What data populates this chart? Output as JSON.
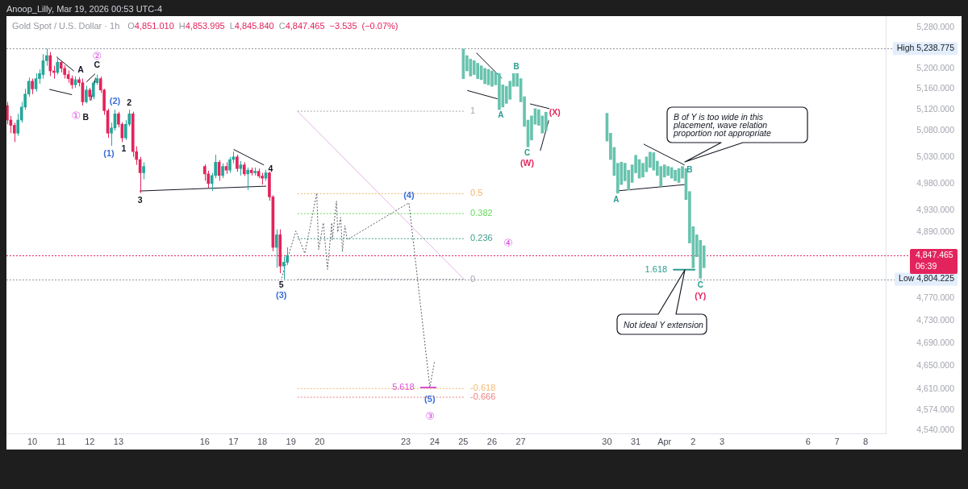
{
  "chart_data": {
    "type": "candlestick",
    "title": "Gold Spot / U.S. Dollar · 1h",
    "subtitle": "O4,851.010 H4,853.995 L4,845.840 C4,847.465 −3.535 (−0.07%)",
    "log": "y",
    "xlim": [
      "2026-03-09T02:24",
      "2026-04-08T16:48"
    ],
    "ylim": [
      4534,
      5303
    ],
    "xticks": [
      {
        "value": "2026-03-10",
        "label": "10"
      },
      {
        "value": "2026-03-11",
        "label": "11"
      },
      {
        "value": "2026-03-12",
        "label": "12"
      },
      {
        "value": "2026-03-13",
        "label": "13"
      },
      {
        "value": "2026-03-16",
        "label": "16"
      },
      {
        "value": "2026-03-17",
        "label": "17"
      },
      {
        "value": "2026-03-18",
        "label": "18"
      },
      {
        "value": "2026-03-19",
        "label": "19"
      },
      {
        "value": "2026-03-20",
        "label": "20"
      },
      {
        "value": "2026-03-23",
        "label": "23"
      },
      {
        "value": "2026-03-24",
        "label": "24"
      },
      {
        "value": "2026-03-25",
        "label": "25"
      },
      {
        "value": "2026-03-26",
        "label": "26"
      },
      {
        "value": "2026-03-27",
        "label": "27"
      },
      {
        "value": "2026-03-30",
        "label": "30"
      },
      {
        "value": "2026-03-31",
        "label": "31"
      },
      {
        "value": "2026-04-01",
        "label": "Apr"
      },
      {
        "value": "2026-04-02",
        "label": "2"
      },
      {
        "value": "2026-04-03",
        "label": "3"
      },
      {
        "value": "2026-04-06",
        "label": "6"
      },
      {
        "value": "2026-04-07",
        "label": "7"
      },
      {
        "value": "2026-04-08",
        "label": "8"
      }
    ],
    "yticks": [
      {
        "value": 5280,
        "label": "5,280.000"
      },
      {
        "value": 5200,
        "label": "5,200.000"
      },
      {
        "value": 5160,
        "label": "5,160.000"
      },
      {
        "value": 5120,
        "label": "5,120.000"
      },
      {
        "value": 5080,
        "label": "5,080.000"
      },
      {
        "value": 5030,
        "label": "5,030.000"
      },
      {
        "value": 4980,
        "label": "4,980.000"
      },
      {
        "value": 4930,
        "label": "4,930.000"
      },
      {
        "value": 4890,
        "label": "4,890.000"
      },
      {
        "value": 4770,
        "label": "4,770.000"
      },
      {
        "value": 4730,
        "label": "4,730.000"
      },
      {
        "value": 4690,
        "label": "4,690.000"
      },
      {
        "value": 4650,
        "label": "4,650.000"
      },
      {
        "value": 4610,
        "label": "4,610.000"
      },
      {
        "value": 4574,
        "label": "4,574.000"
      },
      {
        "value": 4540,
        "label": "4,540.000"
      }
    ],
    "series": [
      {
        "x": [
          "2026-03-09T03:00",
          "2026-03-09T06:00",
          "2026-03-09T09:00",
          "2026-03-09T12:00",
          "2026-03-09T15:00",
          "2026-03-09T18:00",
          "2026-03-09T21:00",
          "2026-03-10T00:00",
          "2026-03-10T03:00",
          "2026-03-10T06:00",
          "2026-03-10T09:00",
          "2026-03-10T12:00",
          "2026-03-10T15:00",
          "2026-03-10T18:00",
          "2026-03-10T21:00",
          "2026-03-11T00:00",
          "2026-03-11T03:00",
          "2026-03-11T06:00",
          "2026-03-11T09:00",
          "2026-03-11T12:00",
          "2026-03-11T15:00",
          "2026-03-11T18:00",
          "2026-03-11T21:00",
          "2026-03-12T00:00",
          "2026-03-12T03:00",
          "2026-03-12T06:00",
          "2026-03-12T09:00",
          "2026-03-12T12:00",
          "2026-03-12T15:00",
          "2026-03-12T18:00",
          "2026-03-12T21:00",
          "2026-03-13T00:00",
          "2026-03-13T03:00",
          "2026-03-13T06:00",
          "2026-03-13T09:00",
          "2026-03-13T12:00",
          "2026-03-13T15:00",
          "2026-03-13T18:00",
          "2026-03-13T21:00",
          "2026-03-16T00:00",
          "2026-03-16T03:00",
          "2026-03-16T06:00",
          "2026-03-16T09:00",
          "2026-03-16T12:00",
          "2026-03-16T15:00",
          "2026-03-16T18:00",
          "2026-03-16T21:00",
          "2026-03-17T00:00",
          "2026-03-17T03:00",
          "2026-03-17T06:00",
          "2026-03-17T09:00",
          "2026-03-17T12:00",
          "2026-03-17T15:00",
          "2026-03-17T18:00",
          "2026-03-17T21:00",
          "2026-03-18T00:00",
          "2026-03-18T03:00",
          "2026-03-18T06:00",
          "2026-03-18T09:00",
          "2026-03-18T12:00",
          "2026-03-18T15:00",
          "2026-03-18T18:00",
          "2026-03-18T21:00"
        ],
        "ohlc": [
          [
            5128,
            5135,
            5092,
            5100
          ],
          [
            5100,
            5108,
            5075,
            5090
          ],
          [
            5090,
            5095,
            5058,
            5075
          ],
          [
            5075,
            5112,
            5070,
            5100
          ],
          [
            5100,
            5135,
            5095,
            5125
          ],
          [
            5125,
            5160,
            5120,
            5150
          ],
          [
            5150,
            5182,
            5145,
            5175
          ],
          [
            5175,
            5180,
            5150,
            5160
          ],
          [
            5160,
            5190,
            5155,
            5180
          ],
          [
            5180,
            5198,
            5170,
            5190
          ],
          [
            5188,
            5228,
            5180,
            5215
          ],
          [
            5215,
            5238.775,
            5205,
            5225
          ],
          [
            5225,
            5232,
            5185,
            5195
          ],
          [
            5195,
            5205,
            5180,
            5192
          ],
          [
            5192,
            5220,
            5188,
            5212
          ],
          [
            5212,
            5215,
            5192,
            5200
          ],
          [
            5200,
            5206,
            5180,
            5188
          ],
          [
            5188,
            5196,
            5172,
            5180
          ],
          [
            5180,
            5186,
            5160,
            5168
          ],
          [
            5168,
            5184,
            5162,
            5178
          ],
          [
            5178,
            5183,
            5165,
            5172
          ],
          [
            5172,
            5180,
            5128,
            5135
          ],
          [
            5135,
            5166,
            5132,
            5158
          ],
          [
            5158,
            5162,
            5138,
            5145
          ],
          [
            5145,
            5176,
            5140,
            5172
          ],
          [
            5172,
            5188,
            5168,
            5180
          ],
          [
            5180,
            5184,
            5152,
            5158
          ],
          [
            5158,
            5160,
            5110,
            5118
          ],
          [
            5118,
            5122,
            5066,
            5075
          ],
          [
            5075,
            5095,
            5051,
            5085
          ],
          [
            5085,
            5120,
            5080,
            5112
          ],
          [
            5112,
            5116,
            5086,
            5092
          ],
          [
            5092,
            5096,
            5058,
            5066
          ],
          [
            5066,
            5100,
            5062,
            5092
          ],
          [
            5092,
            5120,
            5088,
            5112
          ],
          [
            5112,
            5116,
            5030,
            5040
          ],
          [
            5040,
            5050,
            5015,
            5025
          ],
          [
            5025,
            5030,
            4962,
            5000
          ],
          [
            5000,
            5020,
            4988,
            5012
          ],
          [
            5012,
            5016,
            4985,
            4998
          ],
          [
            4998,
            5004,
            4972,
            4980
          ],
          [
            4980,
            5000,
            4966,
            4995
          ],
          [
            4995,
            5034,
            4990,
            5020
          ],
          [
            5020,
            5024,
            4985,
            4995
          ],
          [
            4995,
            5018,
            4990,
            5012
          ],
          [
            5012,
            5020,
            4998,
            5005
          ],
          [
            5005,
            5030,
            5000,
            5025
          ],
          [
            5025,
            5040,
            5018,
            5030
          ],
          [
            5030,
            5034,
            5002,
            5008
          ],
          [
            5008,
            5022,
            4995,
            5015
          ],
          [
            5015,
            5020,
            4994,
            4998
          ],
          [
            4998,
            5010,
            4968,
            5005
          ],
          [
            5005,
            5010,
            4995,
            5000
          ],
          [
            5000,
            5010,
            4995,
            5003
          ],
          [
            5003,
            5008,
            4990,
            4994
          ],
          [
            4994,
            5000,
            4978,
            4990
          ],
          [
            4990,
            5006,
            4985,
            5000
          ],
          [
            5000,
            5002,
            4948,
            4955
          ],
          [
            4955,
            4958,
            4855,
            4862
          ],
          [
            4862,
            4895,
            4825,
            4885
          ],
          [
            4885,
            4895,
            4815,
            4828
          ],
          [
            4828,
            4845,
            4804.225,
            4835
          ],
          [
            4835,
            4862,
            4830,
            4847.465
          ]
        ],
        "colors": [
          "#e3245c",
          "#e3245c",
          "#e3245c",
          "#26a69a",
          "#26a69a",
          "#26a69a",
          "#26a69a",
          "#e3245c",
          "#26a69a",
          "#26a69a",
          "#26a69a",
          "#26a69a",
          "#e3245c",
          "#e3245c",
          "#26a69a",
          "#e3245c",
          "#e3245c",
          "#e3245c",
          "#e3245c",
          "#26a69a",
          "#e3245c",
          "#e3245c",
          "#26a69a",
          "#e3245c",
          "#26a69a",
          "#26a69a",
          "#e3245c",
          "#e3245c",
          "#e3245c",
          "#26a69a",
          "#26a69a",
          "#e3245c",
          "#e3245c",
          "#26a69a",
          "#26a69a",
          "#e3245c",
          "#e3245c",
          "#e3245c",
          "#26a69a",
          "#e3245c",
          "#e3245c",
          "#26a69a",
          "#26a69a",
          "#e3245c",
          "#26a69a",
          "#e3245c",
          "#26a69a",
          "#26a69a",
          "#e3245c",
          "#26a69a",
          "#e3245c",
          "#26a69a",
          "#e3245c",
          "#26a69a",
          "#e3245c",
          "#e3245c",
          "#26a69a",
          "#e3245c",
          "#e3245c",
          "#26a69a",
          "#e3245c",
          "#26a69a",
          "#26a69a"
        ]
      },
      {
        "type": "bar",
        "color": "#68c3ae",
        "x": [
          "2026-03-25T00:00",
          "2026-03-25T03:00",
          "2026-03-25T06:00",
          "2026-03-25T09:00",
          "2026-03-25T12:00",
          "2026-03-25T15:00",
          "2026-03-25T18:00",
          "2026-03-25T21:00",
          "2026-03-26T00:00",
          "2026-03-26T03:00",
          "2026-03-26T06:00",
          "2026-03-26T09:00",
          "2026-03-26T12:00",
          "2026-03-26T15:00",
          "2026-03-26T18:00",
          "2026-03-26T21:00",
          "2026-03-27T00:00",
          "2026-03-27T03:00",
          "2026-03-27T06:00",
          "2026-03-27T09:00",
          "2026-03-27T12:00",
          "2026-03-27T15:00",
          "2026-03-27T18:00",
          "2026-03-27T21:00",
          "2026-03-30T00:00",
          "2026-03-30T03:00",
          "2026-03-30T06:00",
          "2026-03-30T09:00",
          "2026-03-30T12:00",
          "2026-03-30T15:00",
          "2026-03-30T18:00",
          "2026-03-30T21:00",
          "2026-03-31T00:00",
          "2026-03-31T03:00",
          "2026-03-31T06:00",
          "2026-03-31T09:00",
          "2026-03-31T12:00",
          "2026-03-31T15:00",
          "2026-03-31T18:00",
          "2026-03-31T21:00",
          "2026-04-01T00:00",
          "2026-04-01T03:00",
          "2026-04-01T06:00",
          "2026-04-01T09:00",
          "2026-04-01T12:00",
          "2026-04-01T15:00",
          "2026-04-01T18:00",
          "2026-04-01T21:00",
          "2026-04-02T00:00",
          "2026-04-02T03:00",
          "2026-04-02T06:00",
          "2026-04-02T09:00"
        ],
        "base": [
          5180,
          5195,
          5185,
          5188,
          5180,
          5178,
          5170,
          5168,
          5165,
          5168,
          5120,
          5125,
          5132,
          5140,
          5165,
          5165,
          5135,
          5088,
          5049,
          5062,
          5092,
          5090,
          5075,
          5080,
          5060,
          5025,
          4995,
          4962,
          4978,
          4985,
          4968,
          4982,
          5000,
          4990,
          4992,
          5002,
          5010,
          5005,
          4995,
          4975,
          4992,
          4995,
          4990,
          4985,
          4982,
          4990,
          4950,
          4870,
          4825,
          4845,
          4806,
          4825
        ],
        "values": [
          58,
          30,
          33,
          27,
          30,
          27,
          30,
          30,
          30,
          24,
          70,
          43,
          33,
          35,
          25,
          25,
          45,
          57,
          51,
          46,
          30,
          30,
          33,
          35,
          53,
          50,
          53,
          56,
          42,
          33,
          37,
          33,
          33,
          35,
          26,
          28,
          29,
          33,
          27,
          37,
          23,
          17,
          20,
          20,
          26,
          22,
          58,
          95,
          75,
          40,
          69,
          40
        ]
      },
      {
        "type": "line",
        "color": "#5d606b",
        "line_style": "dotted",
        "x": [
          "2026-03-18T16:11",
          "2026-03-19T04:09",
          "2026-03-19T11:37",
          "2026-03-19T21:36",
          "2026-03-19T23:07",
          "2026-03-20T03:06",
          "2026-03-20T06:35",
          "2026-03-20T10:05",
          "2026-03-20T10:35",
          "2026-03-20T14:04",
          "2026-03-20T15:04",
          "2026-03-20T17:34",
          "2026-03-20T19:03",
          "2026-03-20T21:03",
          "2026-03-20T23:02",
          "2026-03-23T02:33",
          "2026-03-23T20:01",
          "2026-03-24T00:00"
        ],
        "values": [
          4806,
          4892,
          4851,
          4962,
          4858,
          4907,
          4822,
          4907,
          4876,
          4947,
          4890,
          4917,
          4854,
          4902,
          4876,
          4944,
          4613,
          4659
        ]
      },
      {
        "type": "line",
        "name": "1",
        "color": "#a3a6af",
        "line_style": "dotted",
        "x": [
          "2026-03-19T05:31",
          "2026-03-25T00:29"
        ],
        "values": [
          5117,
          5117
        ]
      },
      {
        "type": "line",
        "name": "0.5",
        "color": "#f0b46a",
        "line_style": "dotted",
        "x": [
          "2026-03-19T05:31",
          "2026-03-25T00:29"
        ],
        "values": [
          4961,
          4961
        ]
      },
      {
        "type": "line",
        "name": "0.382",
        "color": "#66d95b",
        "line_style": "dotted",
        "x": [
          "2026-03-19T05:31",
          "2026-03-25T00:29"
        ],
        "values": [
          4924,
          4924
        ]
      },
      {
        "type": "line",
        "name": "0.236",
        "color": "#3a9f8c",
        "line_style": "dotted",
        "x": [
          "2026-03-19T05:31",
          "2026-03-25T00:29"
        ],
        "values": [
          4878,
          4878
        ]
      },
      {
        "type": "line",
        "name": "0",
        "color": "#a3a6af",
        "line_style": "dotted",
        "x": [
          "2026-03-19T05:31",
          "2026-03-25T00:29"
        ],
        "values": [
          4804.225,
          4804.225
        ]
      },
      {
        "type": "line",
        "name": "-0.618",
        "color": "#f5b870",
        "line_style": "dotted",
        "x": [
          "2026-03-19T05:31",
          "2026-03-25T00:29"
        ],
        "values": [
          4611,
          4611
        ]
      },
      {
        "type": "line",
        "name": "-0.666",
        "color": "#ef7f7f",
        "line_style": "dotted",
        "x": [
          "2026-03-19T05:31",
          "2026-03-25T00:29"
        ],
        "values": [
          4596,
          4596
        ]
      },
      {
        "type": "line",
        "color": "#e5b3e8",
        "x": [
          "2026-03-19T05:31",
          "2026-03-25T00:29"
        ],
        "values": [
          5117,
          4804.225
        ]
      },
      {
        "type": "line",
        "color": "#131722",
        "x": [
          "2026-03-10T20:24",
          "2026-03-11T10:34"
        ],
        "values": [
          5222,
          5195
        ]
      },
      {
        "type": "line",
        "color": "#131722",
        "x": [
          "2026-03-10T14:24",
          "2026-03-11T08:53"
        ],
        "values": [
          5159,
          5149
        ]
      },
      {
        "type": "line",
        "color": "#131722",
        "x": [
          "2026-03-11T21:22",
          "2026-03-12T04:19"
        ],
        "values": [
          5174,
          5189
        ]
      },
      {
        "type": "line",
        "color": "#131722",
        "x": [
          "2026-03-12T00:58",
          "2026-03-12T04:48"
        ],
        "values": [
          5138,
          5181
        ]
      },
      {
        "type": "line",
        "color": "#131722",
        "x": [
          "2026-03-17T00:14",
          "2026-03-18T01:12"
        ],
        "values": [
          5044,
          5015
        ]
      },
      {
        "type": "line",
        "color": "#131722",
        "x": [
          "2026-03-13T17:46",
          "2026-03-18T03:07"
        ],
        "values": [
          4966,
          4975
        ]
      },
      {
        "type": "line",
        "color": "#131722",
        "x": [
          "2026-03-25T11:02",
          "2026-03-26T07:55"
        ],
        "values": [
          5230,
          5181
        ]
      },
      {
        "type": "line",
        "color": "#131722",
        "x": [
          "2026-03-25T03:22",
          "2026-03-26T04:19"
        ],
        "values": [
          5157,
          5141
        ]
      },
      {
        "type": "line",
        "color": "#131722",
        "x": [
          "2026-03-27T07:55",
          "2026-03-27T23:46"
        ],
        "values": [
          5131,
          5122
        ]
      },
      {
        "type": "line",
        "color": "#131722",
        "x": [
          "2026-03-27T16:19",
          "2026-03-27T23:17"
        ],
        "values": [
          5042,
          5099
        ]
      },
      {
        "type": "line",
        "color": "#131722",
        "x": [
          "2026-03-31T06:43",
          "2026-04-01T16:34"
        ],
        "values": [
          5054,
          5015
        ]
      },
      {
        "type": "line",
        "color": "#131722",
        "x": [
          "2026-03-30T07:41",
          "2026-04-01T17:17"
        ],
        "values": [
          4966,
          4978
        ]
      },
      {
        "type": "line",
        "name": "1.618",
        "color": "#2a9d8f",
        "x": [
          "2026-04-01T07:41",
          "2026-04-02T01:12"
        ],
        "values": [
          4821.5,
          4821.5
        ]
      },
      {
        "type": "line",
        "name": "5.618",
        "color": "#d84fd8",
        "x": [
          "2026-03-23T12:29",
          "2026-03-24T00:58"
        ],
        "values": [
          4613,
          4613
        ]
      }
    ],
    "ref_lines": [
      {
        "axis": "y",
        "value": 5238.775,
        "label": "High 5,238.775",
        "color": "#9598a1",
        "line_style": "dotted"
      },
      {
        "axis": "y",
        "value": 4804.225,
        "label": "Low 4,804.225",
        "color": "#9598a1",
        "line_style": "dotted"
      },
      {
        "axis": "y",
        "value": 4847.465,
        "label": "4,847.465",
        "color": "#e3245c",
        "line_style": "dotted"
      }
    ],
    "annotations": [
      "Anoop_Lilly, Mar 19, 2026 00:53 UTC-4",
      {
        "text": "②",
        "x": "2026-03-12T06:00",
        "y": 5188
      },
      {
        "text": "C",
        "x": "2026-03-12T06:00",
        "y": 5188
      },
      {
        "text": "A",
        "x": "2026-03-11T15:00",
        "y": 5183
      },
      {
        "text": "①",
        "x": "2026-03-11T18:00",
        "y": 5128
      },
      {
        "text": "B",
        "x": "2026-03-11T18:00",
        "y": 5128
      },
      {
        "text": "(2)",
        "x": "2026-03-12T21:00",
        "y": 5120
      },
      {
        "text": "2",
        "x": "2026-03-13T09:00",
        "y": 5120
      },
      {
        "text": "(1)",
        "x": "2026-03-12T18:00",
        "y": 5051
      },
      {
        "text": "1",
        "x": "2026-03-13T03:00",
        "y": 5058
      },
      {
        "text": "3",
        "x": "2026-03-13T18:00",
        "y": 4962
      },
      {
        "text": "4",
        "x": "2026-03-18T03:00",
        "y": 5006
      },
      {
        "text": "5",
        "x": "2026-03-18T18:00",
        "y": 4804.225
      },
      {
        "text": "(3)",
        "x": "2026-03-18T18:00",
        "y": 4804.225
      },
      {
        "text": "(4)",
        "x": "2026-03-23T02:33",
        "y": 4944
      },
      {
        "text": "(5)",
        "x": "2026-03-23T20:01",
        "y": 4613
      },
      "③",
      "④",
      {
        "text": "A",
        "x": "2026-03-26T06:00",
        "y": 5120
      },
      {
        "text": "B",
        "x": "2026-03-26T21:00",
        "y": 5190
      },
      {
        "text": "C",
        "x": "2026-03-27T06:00",
        "y": 5049
      },
      {
        "text": "(W)",
        "x": "2026-03-27T06:00",
        "y": 5049
      },
      {
        "text": "(X)",
        "x": "2026-03-27T21:00",
        "y": 5115
      },
      {
        "text": "A",
        "x": "2026-03-30T09:00",
        "y": 4962
      },
      {
        "text": "B",
        "x": "2026-04-01T15:00",
        "y": 5012
      },
      {
        "text": "C",
        "x": "2026-04-02T06:00",
        "y": 4806
      },
      {
        "text": "(Y)",
        "x": "2026-04-02T06:00",
        "y": 4806
      },
      "B of Y is too wide in this placement, wave relation proportion not appropriate",
      "Not ideal Y extension",
      "06:39"
    ]
  }
}
